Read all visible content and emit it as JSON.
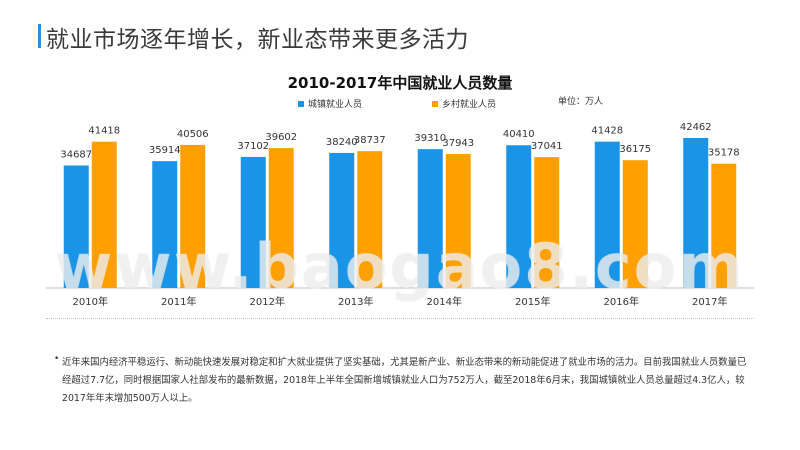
{
  "page": {
    "title": "就业市场逐年增长，新业态带来更多活力"
  },
  "colors": {
    "accent": "#2E8FD9",
    "urban": "#1A94E6",
    "rural": "#FF9F00"
  },
  "chart_data": {
    "type": "bar",
    "title": "2010-2017年中国就业人员数量",
    "unit": "单位：万人",
    "categories": [
      "2010年",
      "2011年",
      "2012年",
      "2013年",
      "2014年",
      "2015年",
      "2016年",
      "2017年"
    ],
    "series": [
      {
        "name": "城镇就业人员",
        "values": [
          34687,
          35914,
          37102,
          38240,
          39310,
          40410,
          41428,
          42462
        ]
      },
      {
        "name": "乡村就业人员",
        "values": [
          41418,
          40506,
          39602,
          38737,
          37943,
          37041,
          36175,
          35178
        ]
      }
    ],
    "legend_position": "top",
    "grid": false
  },
  "watermark": "www.baogao8.com",
  "note": {
    "bullet": "•",
    "text": "近年来国内经济平稳运行、新动能快速发展对稳定和扩大就业提供了坚实基础，尤其是新产业、新业态带来的新动能促进了就业市场的活力。目前我国就业人员数量已经超过7.7亿，同时根据国家人社部发布的最新数据，2018年上半年全国新增城镇就业人口为752万人，截至2018年6月末，我国城镇就业人员总量超过4.3亿人，较2017年年末增加500万人以上。"
  }
}
